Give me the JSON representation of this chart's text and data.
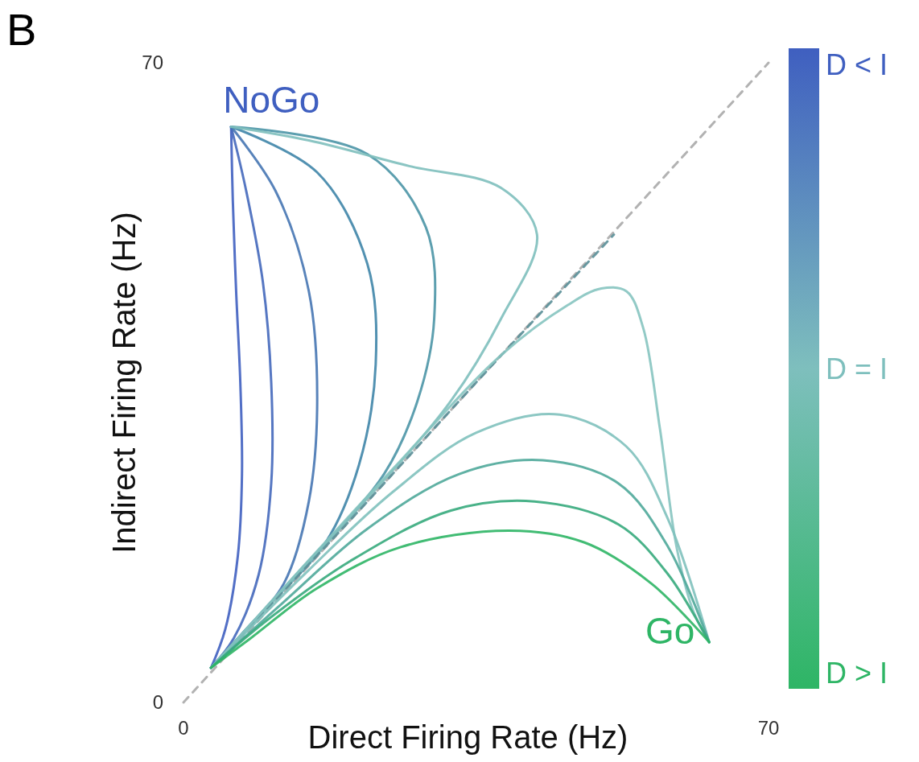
{
  "chart_data": {
    "type": "line",
    "xlabel": "Direct Firing Rate (Hz)",
    "ylabel": "Indirect Firing Rate (Hz)",
    "xlim": [
      0,
      70
    ],
    "ylim": [
      0,
      70
    ],
    "xticks": [
      0,
      70
    ],
    "yticks": [
      0,
      70
    ],
    "grid": false,
    "marker": "none",
    "series": [
      {
        "color": "#aaaaaa",
        "line_style": "dashed",
        "x": [
          0,
          70
        ],
        "values": [
          0,
          70
        ]
      },
      {
        "color": "#3f5fc0",
        "x": [
          3.3,
          5,
          6.5,
          7,
          6.8,
          6.3,
          5.9,
          5.7
        ],
        "values": [
          3.8,
          8,
          16,
          25,
          35,
          45,
          55,
          63
        ]
      },
      {
        "color": "#4468bb",
        "x": [
          3.3,
          6,
          9,
          10.5,
          10.5,
          9.5,
          7.5,
          5.7
        ],
        "values": [
          3.8,
          7,
          14,
          24,
          35,
          46,
          56,
          63
        ]
      },
      {
        "color": "#4676b3",
        "x": [
          3.3,
          7,
          12,
          15,
          16,
          15,
          11,
          5.7
        ],
        "values": [
          3.8,
          7.5,
          13,
          22,
          33,
          45,
          56,
          63
        ]
      },
      {
        "color": "#3f85a8",
        "x": [
          3.3,
          10,
          17,
          21,
          23,
          22,
          16,
          5.7
        ],
        "values": [
          3.8,
          10.5,
          17.5,
          26,
          37,
          48,
          58,
          63
        ]
      },
      {
        "color": "#4b95a6",
        "x": [
          3.3,
          14,
          24,
          28,
          30,
          29,
          22,
          5.7
        ],
        "values": [
          3.8,
          14.5,
          25,
          33,
          42,
          52,
          60,
          63
        ]
      },
      {
        "color": "#7ebfbd",
        "x": [
          3.3,
          20,
          32,
          38,
          42.3,
          38,
          27,
          15,
          5.7
        ],
        "values": [
          3.8,
          20.3,
          33,
          42,
          51.2,
          56.3,
          58.7,
          61.5,
          63
        ]
      },
      {
        "color": "#5a8f98",
        "line_style": "dashed",
        "x": [
          3.3,
          20,
          35,
          51.5
        ],
        "values": [
          3.8,
          20,
          35,
          51.2
        ]
      },
      {
        "color": "#86c4c0",
        "x": [
          3.3,
          25,
          38,
          46,
          50,
          53,
          55,
          57,
          59,
          61,
          62.9
        ],
        "values": [
          3.8,
          25.5,
          38,
          43.5,
          45.3,
          45,
          41,
          30,
          17,
          10,
          6.6
        ]
      },
      {
        "color": "#7fc1bc",
        "x": [
          3.3,
          15,
          25,
          35,
          45,
          53,
          58,
          62.9
        ],
        "values": [
          3.8,
          14.5,
          23,
          29.5,
          31.5,
          28,
          20,
          6.6
        ]
      },
      {
        "color": "#4fa99a",
        "x": [
          3.3,
          12,
          22,
          33,
          43,
          52,
          58,
          62.9
        ],
        "values": [
          3.8,
          11,
          19,
          25,
          26.5,
          24,
          17,
          6.6
        ]
      },
      {
        "color": "#36aa7c",
        "x": [
          3.3,
          10,
          20,
          32,
          42,
          52,
          58,
          62.9
        ],
        "values": [
          3.8,
          9,
          15.5,
          21,
          22,
          19.5,
          14,
          6.6
        ]
      },
      {
        "color": "#2eb565",
        "x": [
          3.3,
          8,
          16,
          26,
          39,
          48,
          56,
          62.9
        ],
        "values": [
          3.8,
          7,
          12.5,
          17,
          18.8,
          17.5,
          13,
          6.6
        ]
      }
    ],
    "annotations": [
      "B",
      {
        "text": "NoGo",
        "x": 5.7,
        "y": 63
      },
      {
        "text": "Go",
        "x": 62.9,
        "y": 6.6
      },
      "D < I",
      "D = I",
      "D > I"
    ]
  }
}
